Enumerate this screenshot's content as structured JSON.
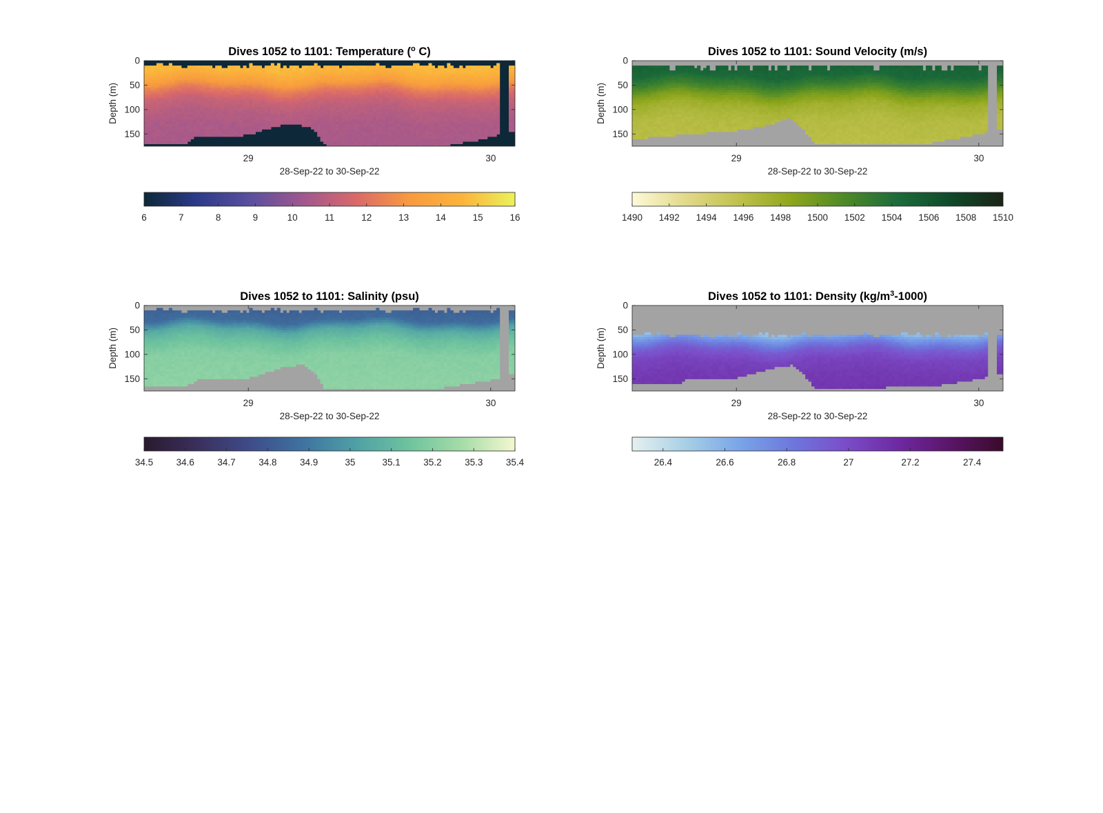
{
  "chart_data": [
    {
      "type": "heatmap",
      "title": "Dives 1052 to 1101: Temperature (° C)",
      "title_parts": [
        "Dives 1052 to 1101: Temperature (",
        "o",
        " C)"
      ],
      "xlabel": "28-Sep-22 to 30-Sep-22",
      "ylabel": "Depth (m)",
      "x_ticks": [
        "29",
        "30"
      ],
      "x_tick_values": [
        29,
        30
      ],
      "xlim": [
        28.57,
        30.1
      ],
      "y_ticks": [
        "0",
        "50",
        "100",
        "150"
      ],
      "ylim": [
        0,
        175
      ],
      "y_reversed": true,
      "no_data_color": "#0d2838",
      "colormap": [
        "#0d2838",
        "#2c3a8a",
        "#5a4f9e",
        "#a0578f",
        "#d9696a",
        "#f79a3f",
        "#fbb43b",
        "#eaf25a"
      ],
      "clim": [
        6,
        16
      ],
      "colorbar_ticks": [
        "6",
        "7",
        "8",
        "9",
        "10",
        "11",
        "12",
        "13",
        "14",
        "15",
        "16"
      ],
      "profile": [
        {
          "depth": 0,
          "value": 14.8
        },
        {
          "depth": 20,
          "value": 14.6
        },
        {
          "depth": 40,
          "value": 13.6
        },
        {
          "depth": 60,
          "value": 12.2
        },
        {
          "depth": 80,
          "value": 11.3
        },
        {
          "depth": 100,
          "value": 10.9
        },
        {
          "depth": 130,
          "value": 10.6
        },
        {
          "depth": 175,
          "value": 10.5
        }
      ],
      "bottom_depth": [
        {
          "x": 28.57,
          "depth": 170
        },
        {
          "x": 28.75,
          "depth": 168
        },
        {
          "x": 28.78,
          "depth": 155
        },
        {
          "x": 28.9,
          "depth": 155
        },
        {
          "x": 29.0,
          "depth": 152
        },
        {
          "x": 29.12,
          "depth": 133
        },
        {
          "x": 29.2,
          "depth": 130
        },
        {
          "x": 29.27,
          "depth": 140
        },
        {
          "x": 29.32,
          "depth": 175
        },
        {
          "x": 29.8,
          "depth": 175
        },
        {
          "x": 29.95,
          "depth": 162
        },
        {
          "x": 30.05,
          "depth": 148
        },
        {
          "x": 30.1,
          "depth": 145
        }
      ],
      "surface_gap_depth": 8,
      "gap_column": {
        "x0": 30.04,
        "x1": 30.07
      }
    },
    {
      "type": "heatmap",
      "title": "Dives 1052 to 1101: Sound Velocity (m/s)",
      "title_parts": [
        "Dives 1052 to 1101: Sound Velocity (m/s)"
      ],
      "xlabel": "28-Sep-22 to 30-Sep-22",
      "ylabel": "Depth (m)",
      "x_ticks": [
        "29",
        "30"
      ],
      "x_tick_values": [
        29,
        30
      ],
      "xlim": [
        28.57,
        30.1
      ],
      "y_ticks": [
        "0",
        "50",
        "100",
        "150"
      ],
      "ylim": [
        0,
        175
      ],
      "y_reversed": true,
      "no_data_color": "#a3a3a3",
      "colormap": [
        "#fdfad7",
        "#e2d98a",
        "#c0c14d",
        "#8ea61c",
        "#4e8a27",
        "#1c6c3a",
        "#0f4a2a",
        "#1a2416"
      ],
      "clim": [
        1490,
        1510
      ],
      "colorbar_ticks": [
        "1490",
        "1492",
        "1494",
        "1496",
        "1498",
        "1500",
        "1502",
        "1504",
        "1506",
        "1508",
        "1510"
      ],
      "profile": [
        {
          "depth": 0,
          "value": 1505.2
        },
        {
          "depth": 30,
          "value": 1504.6
        },
        {
          "depth": 50,
          "value": 1502.5
        },
        {
          "depth": 70,
          "value": 1499.5
        },
        {
          "depth": 90,
          "value": 1497.5
        },
        {
          "depth": 120,
          "value": 1496.4
        },
        {
          "depth": 175,
          "value": 1496.0
        }
      ],
      "bottom_depth": [
        {
          "x": 28.57,
          "depth": 160
        },
        {
          "x": 28.8,
          "depth": 150
        },
        {
          "x": 29.0,
          "depth": 143
        },
        {
          "x": 29.15,
          "depth": 130
        },
        {
          "x": 29.22,
          "depth": 115
        },
        {
          "x": 29.28,
          "depth": 140
        },
        {
          "x": 29.32,
          "depth": 170
        },
        {
          "x": 29.8,
          "depth": 168
        },
        {
          "x": 30.0,
          "depth": 150
        },
        {
          "x": 30.1,
          "depth": 140
        }
      ],
      "surface_gap_depth": 12,
      "gap_column": {
        "x0": 30.04,
        "x1": 30.07
      }
    },
    {
      "type": "heatmap",
      "title": "Dives 1052 to 1101: Salinity (psu)",
      "title_parts": [
        "Dives 1052 to 1101: Salinity (psu)"
      ],
      "xlabel": "28-Sep-22 to 30-Sep-22",
      "ylabel": "Depth (m)",
      "x_ticks": [
        "29",
        "30"
      ],
      "x_tick_values": [
        29,
        30
      ],
      "xlim": [
        28.57,
        30.1
      ],
      "y_ticks": [
        "0",
        "50",
        "100",
        "150"
      ],
      "ylim": [
        0,
        175
      ],
      "y_reversed": true,
      "no_data_color": "#a3a3a3",
      "colormap": [
        "#2a1a2f",
        "#3a2f5c",
        "#3e4c8a",
        "#3f73a0",
        "#4fa0a6",
        "#6ec39e",
        "#a5dca8",
        "#f5f7cf"
      ],
      "clim": [
        34.5,
        35.4
      ],
      "colorbar_ticks": [
        "34.5",
        "34.6",
        "34.7",
        "34.8",
        "34.9",
        "35",
        "35.1",
        "35.2",
        "35.3",
        "35.4"
      ],
      "profile": [
        {
          "depth": 0,
          "value": 34.82
        },
        {
          "depth": 30,
          "value": 34.86
        },
        {
          "depth": 50,
          "value": 35.05
        },
        {
          "depth": 70,
          "value": 35.13
        },
        {
          "depth": 100,
          "value": 35.2
        },
        {
          "depth": 175,
          "value": 35.22
        }
      ],
      "bottom_depth": [
        {
          "x": 28.57,
          "depth": 165
        },
        {
          "x": 28.75,
          "depth": 163
        },
        {
          "x": 28.8,
          "depth": 150
        },
        {
          "x": 29.0,
          "depth": 148
        },
        {
          "x": 29.15,
          "depth": 125
        },
        {
          "x": 29.23,
          "depth": 120
        },
        {
          "x": 29.28,
          "depth": 140
        },
        {
          "x": 29.32,
          "depth": 172
        },
        {
          "x": 29.8,
          "depth": 168
        },
        {
          "x": 30.0,
          "depth": 152
        },
        {
          "x": 30.1,
          "depth": 140
        }
      ],
      "surface_gap_depth": 10,
      "gap_column": {
        "x0": 30.04,
        "x1": 30.07
      }
    },
    {
      "type": "heatmap",
      "title": "Dives 1052 to 1101: Density (kg/m³-1000)",
      "title_parts": [
        "Dives 1052 to 1101: Density (kg/m",
        "3",
        "-1000)"
      ],
      "xlabel": "28-Sep-22 to 30-Sep-22",
      "ylabel": "Depth (m)",
      "x_ticks": [
        "29",
        "30"
      ],
      "x_tick_values": [
        29,
        30
      ],
      "xlim": [
        28.57,
        30.1
      ],
      "y_ticks": [
        "0",
        "50",
        "100",
        "150"
      ],
      "ylim": [
        0,
        175
      ],
      "y_reversed": true,
      "no_data_color": "#a3a3a3",
      "colormap": [
        "#e6f0f0",
        "#a8d0e6",
        "#7aa6e8",
        "#6d78dd",
        "#7b4ec9",
        "#6e2aa2",
        "#5a1568",
        "#3a0b2a"
      ],
      "clim": [
        26.3,
        27.5
      ],
      "colorbar_ticks": [
        "26.4",
        "26.6",
        "26.8",
        "27",
        "27.2",
        "27.4"
      ],
      "colorbar_tick_values": [
        26.4,
        26.6,
        26.8,
        27,
        27.2,
        27.4
      ],
      "profile": [
        {
          "depth": 55,
          "value": 26.55
        },
        {
          "depth": 70,
          "value": 26.72
        },
        {
          "depth": 90,
          "value": 26.93
        },
        {
          "depth": 110,
          "value": 27.03
        },
        {
          "depth": 140,
          "value": 27.08
        },
        {
          "depth": 175,
          "value": 27.1
        }
      ],
      "bottom_depth": [
        {
          "x": 28.57,
          "depth": 160
        },
        {
          "x": 28.75,
          "depth": 162
        },
        {
          "x": 28.8,
          "depth": 150
        },
        {
          "x": 29.0,
          "depth": 148
        },
        {
          "x": 29.15,
          "depth": 128
        },
        {
          "x": 29.23,
          "depth": 122
        },
        {
          "x": 29.28,
          "depth": 140
        },
        {
          "x": 29.32,
          "depth": 170
        },
        {
          "x": 29.8,
          "depth": 166
        },
        {
          "x": 30.0,
          "depth": 150
        },
        {
          "x": 30.1,
          "depth": 140
        }
      ],
      "surface_gap_depth": 58,
      "gap_column": {
        "x0": 30.04,
        "x1": 30.07
      }
    }
  ]
}
